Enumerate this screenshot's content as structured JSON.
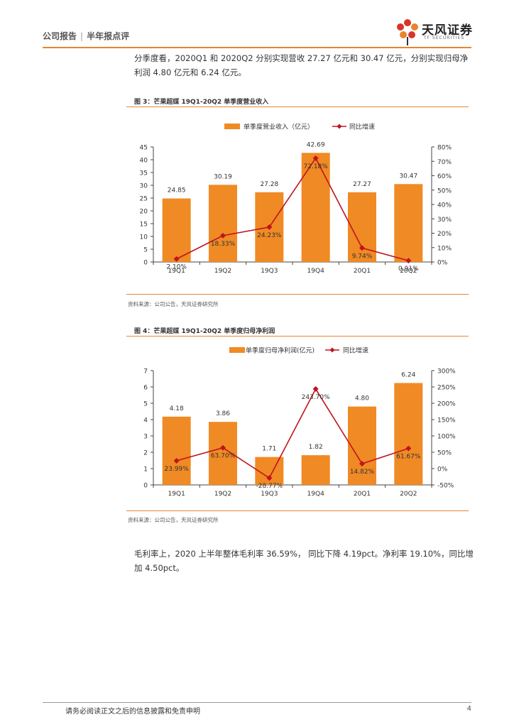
{
  "header": {
    "breadcrumb_left": "公司报告",
    "breadcrumb_sep": "|",
    "breadcrumb_right": "半年报点评",
    "logo_cn": "天风证券",
    "logo_en": "TF SECURITIES"
  },
  "paragraphs": {
    "p1": "分季度看，2020Q1 和 2020Q2 分别实现营收 27.27 亿元和 30.47 亿元，分别实现归母净利润 4.80 亿元和 6.24 亿元。",
    "p2": "毛利率上，2020 上半年整体毛利率 36.59%， 同比下降 4.19pct。净利率 19.10%，同比增加 4.50pct。"
  },
  "figures": [
    {
      "title": "图 3：芒果超媒 19Q1-20Q2 单季度营业收入",
      "source": "资料来源：公司公告，天风证券研究所"
    },
    {
      "title": "图 4：芒果超媒 19Q1-20Q2 单季度归母净利润",
      "source": "资料来源：公司公告，天风证券研究所"
    }
  ],
  "chart_data": [
    {
      "type": "bar",
      "categories": [
        "19Q1",
        "19Q2",
        "19Q3",
        "19Q4",
        "20Q1",
        "20Q2"
      ],
      "series": [
        {
          "name": "单季度营业收入（亿元）",
          "type": "bar",
          "axis": "left",
          "values": [
            24.85,
            30.19,
            27.28,
            42.69,
            27.27,
            30.47
          ],
          "labels": [
            "24.85",
            "30.19",
            "27.28",
            "42.69",
            "27.27",
            "30.47"
          ]
        },
        {
          "name": "同比增速",
          "type": "line",
          "axis": "right",
          "values": [
            2.1,
            18.33,
            24.23,
            72.18,
            9.74,
            0.91
          ],
          "labels": [
            "2.10%",
            "18.33%",
            "24.23%",
            "72.18%",
            "9.74%",
            "0.91%"
          ]
        }
      ],
      "y_left": {
        "min": 0,
        "max": 45,
        "ticks": [
          "0",
          "5",
          "10",
          "15",
          "20",
          "25",
          "30",
          "35",
          "40",
          "45"
        ]
      },
      "y_right": {
        "min": 0,
        "max": 80,
        "ticks": [
          "0%",
          "10%",
          "20%",
          "30%",
          "40%",
          "50%",
          "60%",
          "70%",
          "80%"
        ]
      },
      "legend_position": "top-center",
      "colors": {
        "bar": "#f08a24",
        "line": "#c0141c"
      }
    },
    {
      "type": "bar",
      "categories": [
        "19Q1",
        "19Q2",
        "19Q3",
        "19Q4",
        "20Q1",
        "20Q2"
      ],
      "series": [
        {
          "name": "单季度归母净利润(亿元)",
          "type": "bar",
          "axis": "left",
          "values": [
            4.18,
            3.86,
            1.71,
            1.82,
            4.8,
            6.24
          ],
          "labels": [
            "4.18",
            "3.86",
            "1.71",
            "1.82",
            "4.80",
            "6.24"
          ]
        },
        {
          "name": "同比增速",
          "type": "line",
          "axis": "right",
          "values": [
            23.99,
            63.7,
            -28.77,
            243.7,
            14.82,
            61.67
          ],
          "labels": [
            "23.99%",
            "63.70%",
            "-28.77%",
            "243.70%",
            "14.82%",
            "61.67%"
          ]
        }
      ],
      "y_left": {
        "min": 0,
        "max": 7,
        "ticks": [
          "0",
          "1",
          "2",
          "3",
          "4",
          "5",
          "6",
          "7"
        ]
      },
      "y_right": {
        "min": -50,
        "max": 300,
        "ticks": [
          "-50%",
          "0%",
          "50%",
          "100%",
          "150%",
          "200%",
          "250%",
          "300%"
        ]
      },
      "legend_position": "top-center",
      "colors": {
        "bar": "#f08a24",
        "line": "#c0141c"
      }
    }
  ],
  "footer": {
    "disclaimer": "请务必阅读正文之后的信息披露和免责申明",
    "page": "4"
  }
}
